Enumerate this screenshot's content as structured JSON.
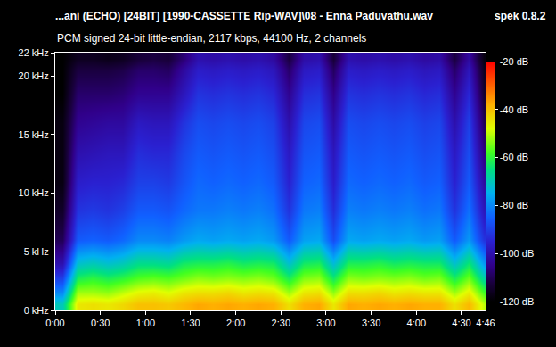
{
  "chart_data": {
    "type": "heatmap",
    "title": "...ani (ECHO) [24BIT] [1990-CASSETTE Rip-WAV]\\08 - Enna Paduvathu.wav",
    "subtitle": "PCM signed 24-bit little-endian, 2117 kbps, 44100 Hz, 2 channels",
    "annotations": [
      {
        "text": "spek 0.8.2"
      }
    ],
    "x": [
      5,
      15,
      25,
      35,
      45,
      55,
      65,
      75,
      85,
      95,
      105,
      115,
      125,
      135,
      145,
      155,
      165,
      175,
      185,
      195,
      205,
      215,
      225,
      235,
      245,
      255,
      265,
      275,
      285
    ],
    "y": [
      0.5,
      1.5,
      2.75,
      4,
      6,
      8.5,
      11,
      13.5,
      16,
      18.5,
      20.5,
      21.5
    ],
    "z": [
      [
        -70,
        -80,
        -90,
        -100,
        -110,
        -115,
        -118,
        -118,
        -118,
        -120,
        -120,
        -120
      ],
      [
        -45,
        -52,
        -62,
        -72,
        -86,
        -92,
        -96,
        -100,
        -104,
        -108,
        -112,
        -116
      ],
      [
        -44,
        -52,
        -60,
        -70,
        -85,
        -91,
        -95,
        -99,
        -103,
        -108,
        -112,
        -116
      ],
      [
        -45,
        -53,
        -62,
        -72,
        -86,
        -92,
        -95,
        -98,
        -102,
        -108,
        -112,
        -117
      ],
      [
        -43,
        -50,
        -60,
        -70,
        -84,
        -90,
        -94,
        -98,
        -102,
        -107,
        -111,
        -116
      ],
      [
        -40,
        -47,
        -57,
        -66,
        -80,
        -86,
        -90,
        -93,
        -97,
        -104,
        -108,
        -113
      ],
      [
        -40,
        -46,
        -56,
        -66,
        -80,
        -86,
        -90,
        -94,
        -98,
        -104,
        -108,
        -112
      ],
      [
        -41,
        -48,
        -57,
        -67,
        -81,
        -87,
        -91,
        -94,
        -98,
        -104,
        -109,
        -113
      ],
      [
        -39,
        -45,
        -55,
        -63,
        -78,
        -84,
        -87,
        -89,
        -92,
        -98,
        -102,
        -107
      ],
      [
        -37,
        -44,
        -53,
        -62,
        -76,
        -82,
        -84,
        -86,
        -88,
        -92,
        -96,
        -100
      ],
      [
        -38,
        -44,
        -54,
        -62,
        -77,
        -82,
        -85,
        -87,
        -89,
        -93,
        -97,
        -101
      ],
      [
        -37,
        -43,
        -53,
        -61,
        -76,
        -81,
        -84,
        -86,
        -88,
        -92,
        -96,
        -100
      ],
      [
        -38,
        -45,
        -54,
        -63,
        -77,
        -82,
        -85,
        -87,
        -89,
        -93,
        -97,
        -101
      ],
      [
        -37,
        -44,
        -53,
        -62,
        -76,
        -81,
        -84,
        -86,
        -88,
        -92,
        -96,
        -100
      ],
      [
        -38,
        -45,
        -55,
        -63,
        -78,
        -83,
        -86,
        -88,
        -90,
        -94,
        -98,
        -102
      ],
      [
        -44,
        -52,
        -62,
        -72,
        -86,
        -92,
        -95,
        -97,
        -100,
        -104,
        -108,
        -112
      ],
      [
        -38,
        -45,
        -54,
        -63,
        -77,
        -82,
        -85,
        -87,
        -89,
        -93,
        -97,
        -101
      ],
      [
        -37,
        -44,
        -53,
        -62,
        -76,
        -81,
        -84,
        -86,
        -88,
        -92,
        -96,
        -100
      ],
      [
        -45,
        -53,
        -63,
        -73,
        -88,
        -93,
        -96,
        -98,
        -101,
        -105,
        -109,
        -113
      ],
      [
        -37,
        -44,
        -53,
        -62,
        -76,
        -81,
        -84,
        -86,
        -88,
        -92,
        -96,
        -100
      ],
      [
        -38,
        -44,
        -54,
        -62,
        -77,
        -82,
        -85,
        -87,
        -89,
        -93,
        -97,
        -101
      ],
      [
        -37,
        -43,
        -53,
        -61,
        -76,
        -81,
        -84,
        -86,
        -88,
        -92,
        -96,
        -100
      ],
      [
        -38,
        -45,
        -54,
        -63,
        -77,
        -82,
        -85,
        -87,
        -89,
        -93,
        -97,
        -101
      ],
      [
        -37,
        -44,
        -53,
        -62,
        -76,
        -81,
        -84,
        -86,
        -88,
        -92,
        -96,
        -100
      ],
      [
        -38,
        -45,
        -55,
        -63,
        -78,
        -83,
        -86,
        -88,
        -90,
        -94,
        -98,
        -102
      ],
      [
        -38,
        -45,
        -54,
        -63,
        -77,
        -82,
        -85,
        -87,
        -89,
        -93,
        -97,
        -101
      ],
      [
        -44,
        -52,
        -62,
        -72,
        -86,
        -92,
        -95,
        -97,
        -100,
        -104,
        -108,
        -112
      ],
      [
        -39,
        -46,
        -55,
        -64,
        -78,
        -83,
        -86,
        -88,
        -90,
        -94,
        -98,
        -102
      ],
      [
        -50,
        -58,
        -68,
        -78,
        -92,
        -98,
        -102,
        -106,
        -110,
        -114,
        -116,
        -118
      ]
    ],
    "xlim": [
      0,
      286
    ],
    "xticks": [
      {
        "value": 0,
        "label": "0:00"
      },
      {
        "value": 30,
        "label": "0:30"
      },
      {
        "value": 60,
        "label": "1:00"
      },
      {
        "value": 90,
        "label": "1:30"
      },
      {
        "value": 120,
        "label": "2:00"
      },
      {
        "value": 150,
        "label": "2:30"
      },
      {
        "value": 180,
        "label": "3:00"
      },
      {
        "value": 210,
        "label": "3:30"
      },
      {
        "value": 240,
        "label": "4:00"
      },
      {
        "value": 270,
        "label": "4:30"
      },
      {
        "value": 286,
        "label": "4:46"
      }
    ],
    "ylim": [
      0,
      22
    ],
    "yticks": [
      {
        "value": 0,
        "label": "0 kHz"
      },
      {
        "value": 5,
        "label": "5 kHz"
      },
      {
        "value": 10,
        "label": "10 kHz"
      },
      {
        "value": 15,
        "label": "15 kHz"
      },
      {
        "value": 20,
        "label": "20 kHz"
      },
      {
        "value": 22,
        "label": "22 kHz"
      }
    ],
    "colorbar": {
      "range": [
        -120,
        -20
      ],
      "ticks": [
        {
          "value": -20,
          "label": "-20 dB"
        },
        {
          "value": -40,
          "label": "-40 dB"
        },
        {
          "value": -60,
          "label": "-60 dB"
        },
        {
          "value": -80,
          "label": "-80 dB"
        },
        {
          "value": -100,
          "label": "-100 dB"
        },
        {
          "value": -120,
          "label": "-120 dB"
        }
      ]
    },
    "grid": false
  }
}
